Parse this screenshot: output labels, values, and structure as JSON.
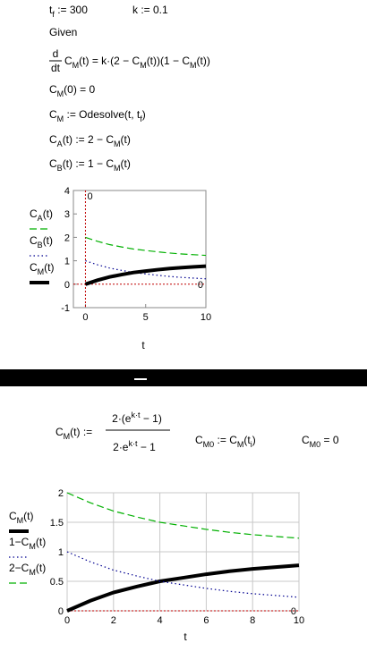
{
  "top": {
    "tf_def": [
      "t",
      "f",
      " := 300"
    ],
    "k_def": "k := 0.1",
    "given": "Given",
    "ode": {
      "d": "d",
      "dt": "dt",
      "rest": [
        "C",
        "M",
        "(t) = k·(2 − C",
        "M",
        "(t))(1 − C",
        "M",
        "(t))"
      ]
    },
    "init": [
      "C",
      "M",
      "(0) = 0"
    ],
    "solve": [
      "C",
      "M",
      " := Odesolve(t, t",
      "f",
      ")"
    ],
    "ca": [
      "C",
      "A",
      "(t) := 2 − C",
      "M",
      "(t)"
    ],
    "cb": [
      "C",
      "B",
      "(t) := 1 − C",
      "M",
      "(t)"
    ]
  },
  "bottom": {
    "cm_lhs": [
      "C",
      "M",
      "(t) :="
    ],
    "cm_num": [
      "2·(e",
      "k·t",
      " − 1)"
    ],
    "cm_den": [
      "2·e",
      "k·t",
      " − 1"
    ],
    "cm0_def": [
      "C",
      "M0",
      " := C",
      "M",
      "(t",
      "i",
      ")"
    ],
    "cm0_val": [
      "C",
      "M0",
      " = 0"
    ]
  },
  "chart_data": [
    {
      "type": "line",
      "x_label": "t",
      "x": [
        0,
        1,
        2,
        3,
        4,
        5,
        6,
        7,
        8,
        9,
        10
      ],
      "series": [
        {
          "name": [
            "C",
            "A",
            "(t)"
          ],
          "color": "#00b000",
          "style": "dashed",
          "values": [
            2,
            1.83,
            1.69,
            1.59,
            1.5,
            1.44,
            1.38,
            1.33,
            1.29,
            1.26,
            1.23
          ]
        },
        {
          "name": [
            "C",
            "B",
            "(t)"
          ],
          "color": "#000090",
          "style": "dotted",
          "values": [
            1,
            0.83,
            0.69,
            0.59,
            0.5,
            0.44,
            0.38,
            0.33,
            0.29,
            0.26,
            0.23
          ]
        },
        {
          "name": [
            "C",
            "M",
            "(t)"
          ],
          "color": "#000000",
          "style": "thick",
          "values": [
            0,
            0.17,
            0.31,
            0.41,
            0.5,
            0.56,
            0.62,
            0.67,
            0.71,
            0.74,
            0.77
          ]
        }
      ],
      "xlim": [
        -1,
        10
      ],
      "xticks": [
        0,
        5,
        10
      ],
      "ylim": [
        -1,
        4
      ],
      "yticks": [
        -1,
        0,
        1,
        2,
        3,
        4
      ],
      "grid": false,
      "markers": [
        {
          "axis": "x",
          "value": 0,
          "label": "0"
        },
        {
          "axis": "y",
          "value": 0,
          "label": "0"
        }
      ],
      "marker_color": "#c00000"
    },
    {
      "type": "line",
      "x_label": "t",
      "x": [
        0,
        1,
        2,
        3,
        4,
        5,
        6,
        7,
        8,
        9,
        10
      ],
      "series": [
        {
          "name": [
            "C",
            "M",
            "(t)"
          ],
          "color": "#000000",
          "style": "thick",
          "values": [
            0,
            0.17,
            0.31,
            0.41,
            0.5,
            0.56,
            0.62,
            0.67,
            0.71,
            0.74,
            0.77
          ]
        },
        {
          "name": [
            "1−C",
            "M",
            "(t)"
          ],
          "color": "#000090",
          "style": "dotted",
          "values": [
            1,
            0.83,
            0.69,
            0.59,
            0.5,
            0.44,
            0.38,
            0.33,
            0.29,
            0.26,
            0.23
          ]
        },
        {
          "name": [
            "2−C",
            "M",
            "(t)"
          ],
          "color": "#00b000",
          "style": "dashed",
          "values": [
            2,
            1.83,
            1.69,
            1.59,
            1.5,
            1.44,
            1.38,
            1.33,
            1.29,
            1.26,
            1.23
          ]
        }
      ],
      "xlim": [
        0,
        10
      ],
      "xticks": [
        0,
        2,
        4,
        6,
        8,
        10
      ],
      "ylim": [
        0,
        2
      ],
      "yticks": [
        0,
        0.5,
        1,
        1.5,
        2
      ],
      "grid": true,
      "markers": [
        {
          "axis": "y",
          "value": 0,
          "label": "0"
        }
      ],
      "marker_color": "#c00000"
    }
  ]
}
